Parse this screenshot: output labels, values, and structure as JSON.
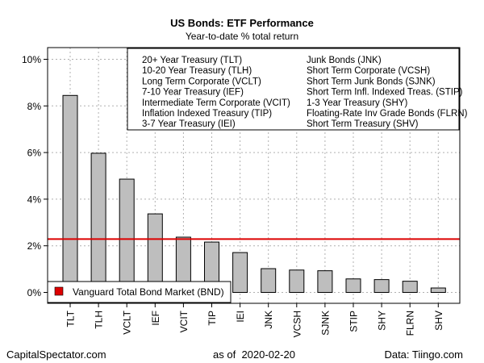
{
  "chart_data": {
    "type": "bar",
    "title": "US Bonds: ETF Performance",
    "subtitle": "Year-to-date % total return",
    "categories": [
      "TLT",
      "TLH",
      "VCLT",
      "IEF",
      "VCIT",
      "TIP",
      "IEI",
      "JNK",
      "VCSH",
      "SJNK",
      "STIP",
      "SHY",
      "FLRN",
      "SHV"
    ],
    "values": [
      8.45,
      5.97,
      4.86,
      3.37,
      2.37,
      2.16,
      1.71,
      1.02,
      0.96,
      0.93,
      0.58,
      0.55,
      0.48,
      0.19
    ],
    "ylim": [
      0,
      10.6
    ],
    "yticks": [
      0,
      2,
      4,
      6,
      8,
      10
    ],
    "ytick_suffix": "%",
    "grid": true,
    "reference_line": {
      "value": 2.29,
      "label": "Vanguard Total Bond Market (BND)",
      "color": "#dd0000"
    },
    "bar_color": "#bebebe",
    "legend_names": {
      "left": [
        "20+ Year Treasury (TLT)",
        "10-20 Year Treasury (TLH)",
        "Long Term Corporate (VCLT)",
        "7-10 Year Treasury (IEF)",
        "Intermediate Term Corporate (VCIT)",
        "Inflation Indexed Treasury (TIP)",
        "3-7 Year Treasury (IEI)"
      ],
      "right": [
        "Junk Bonds (JNK)",
        "Short Term Corporate (VCSH)",
        "Short Term Junk Bonds (SJNK)",
        "Short Term Infl. Indexed Treas. (STIP)",
        "1-3 Year Treasury (SHY)",
        "Floating-Rate Inv Grade Bonds (FLRN)",
        "Short Term Treasury (SHV)"
      ]
    }
  },
  "footer": {
    "left": "CapitalSpectator.com",
    "center": "as of  2020-02-20",
    "right": "Data: Tiingo.com"
  }
}
